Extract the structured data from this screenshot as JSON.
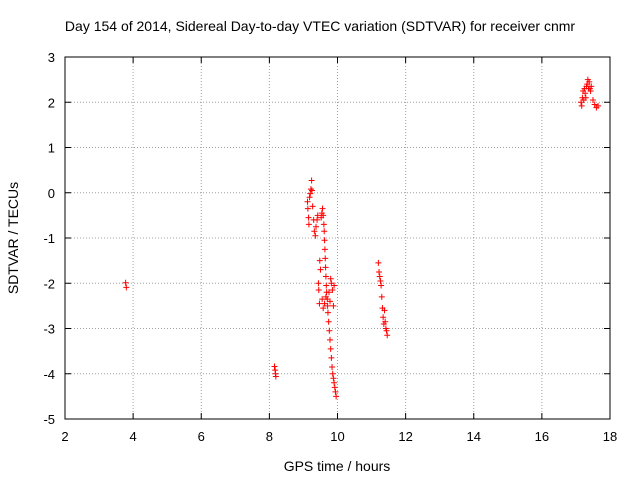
{
  "chart_data": {
    "type": "scatter",
    "title": "Day 154 of 2014, Sidereal Day-to-day VTEC variation (SDTVAR) for receiver cnmr",
    "xlabel": "GPS time / hours",
    "ylabel": "SDTVAR / TECUs",
    "xlim": [
      2,
      18
    ],
    "ylim": [
      -5,
      3
    ],
    "xticks": [
      2,
      4,
      6,
      8,
      10,
      12,
      14,
      16,
      18
    ],
    "yticks": [
      -5,
      -4,
      -3,
      -2,
      -1,
      0,
      1,
      2,
      3
    ],
    "grid": true,
    "legend": "none",
    "marker": "plus",
    "color": "#ff0000",
    "series": [
      {
        "name": "SDTVAR",
        "points": [
          [
            3.78,
            -1.99
          ],
          [
            3.8,
            -2.09
          ],
          [
            8.15,
            -3.84
          ],
          [
            8.17,
            -3.92
          ],
          [
            8.18,
            -4.0
          ],
          [
            8.19,
            -4.06
          ],
          [
            9.12,
            -0.2
          ],
          [
            9.13,
            -0.35
          ],
          [
            9.15,
            -0.55
          ],
          [
            9.16,
            -0.7
          ],
          [
            9.18,
            -0.1
          ],
          [
            9.2,
            -0.02
          ],
          [
            9.22,
            0.08
          ],
          [
            9.24,
            0.27
          ],
          [
            9.25,
            0.05
          ],
          [
            9.27,
            -0.3
          ],
          [
            9.3,
            -0.6
          ],
          [
            9.32,
            -0.85
          ],
          [
            9.35,
            -0.95
          ],
          [
            9.37,
            -0.75
          ],
          [
            9.4,
            -0.6
          ],
          [
            9.42,
            -0.5
          ],
          [
            9.44,
            -2.0
          ],
          [
            9.45,
            -2.15
          ],
          [
            9.47,
            -2.45
          ],
          [
            9.48,
            -1.5
          ],
          [
            9.5,
            -1.7
          ],
          [
            9.52,
            -0.55
          ],
          [
            9.54,
            -0.45
          ],
          [
            9.56,
            -0.35
          ],
          [
            9.58,
            -0.5
          ],
          [
            9.6,
            -0.7
          ],
          [
            9.61,
            -0.85
          ],
          [
            9.62,
            -1.05
          ],
          [
            9.63,
            -1.25
          ],
          [
            9.64,
            -1.45
          ],
          [
            9.65,
            -1.65
          ],
          [
            9.66,
            -1.85
          ],
          [
            9.67,
            -2.05
          ],
          [
            9.68,
            -2.2
          ],
          [
            9.7,
            -2.35
          ],
          [
            9.71,
            -2.5
          ],
          [
            9.72,
            -2.65
          ],
          [
            9.74,
            -2.85
          ],
          [
            9.76,
            -3.05
          ],
          [
            9.78,
            -3.25
          ],
          [
            9.8,
            -3.45
          ],
          [
            9.82,
            -3.65
          ],
          [
            9.84,
            -3.85
          ],
          [
            9.86,
            -4.0
          ],
          [
            9.88,
            -4.1
          ],
          [
            9.9,
            -4.2
          ],
          [
            9.92,
            -4.3
          ],
          [
            9.94,
            -4.4
          ],
          [
            9.96,
            -4.5
          ],
          [
            9.75,
            -2.2
          ],
          [
            9.78,
            -2.4
          ],
          [
            9.8,
            -1.9
          ],
          [
            9.82,
            -2.0
          ],
          [
            9.85,
            -2.15
          ],
          [
            9.88,
            -2.5
          ],
          [
            9.9,
            -2.05
          ],
          [
            9.55,
            -2.35
          ],
          [
            9.58,
            -2.55
          ],
          [
            9.62,
            -2.45
          ],
          [
            9.66,
            -2.3
          ],
          [
            11.2,
            -1.55
          ],
          [
            11.22,
            -1.75
          ],
          [
            11.24,
            -1.85
          ],
          [
            11.26,
            -1.95
          ],
          [
            11.28,
            -2.05
          ],
          [
            11.3,
            -2.3
          ],
          [
            11.32,
            -2.55
          ],
          [
            11.34,
            -2.75
          ],
          [
            11.36,
            -2.9
          ],
          [
            11.38,
            -2.6
          ],
          [
            11.4,
            -2.85
          ],
          [
            11.42,
            -3.0
          ],
          [
            11.44,
            -3.05
          ],
          [
            11.46,
            -3.15
          ],
          [
            17.15,
            2.0
          ],
          [
            17.17,
            1.92
          ],
          [
            17.19,
            2.1
          ],
          [
            17.21,
            2.25
          ],
          [
            17.23,
            2.05
          ],
          [
            17.25,
            2.3
          ],
          [
            17.27,
            2.2
          ],
          [
            17.29,
            2.1
          ],
          [
            17.31,
            2.35
          ],
          [
            17.33,
            2.4
          ],
          [
            17.35,
            2.5
          ],
          [
            17.37,
            2.3
          ],
          [
            17.39,
            2.45
          ],
          [
            17.41,
            2.3
          ],
          [
            17.43,
            2.25
          ],
          [
            17.45,
            2.35
          ],
          [
            17.5,
            2.05
          ],
          [
            17.55,
            1.95
          ],
          [
            17.6,
            1.88
          ],
          [
            17.65,
            1.92
          ]
        ]
      }
    ]
  }
}
